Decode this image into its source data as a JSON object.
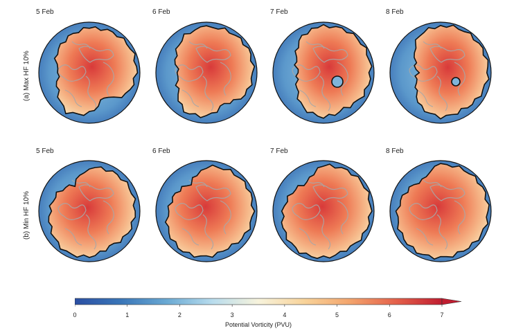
{
  "figure": {
    "dates": [
      "5 Feb",
      "6 Feb",
      "7 Feb",
      "8 Feb"
    ],
    "rows": [
      {
        "label": "(a) Max HF 10%"
      },
      {
        "label": "(b) Min HF 10%"
      }
    ],
    "colorbar": {
      "title": "Potential Vorticity (PVU)",
      "ticks": [
        "0",
        "1",
        "2",
        "3",
        "4",
        "5",
        "6",
        "7"
      ],
      "range": [
        0,
        7
      ],
      "colormap": [
        "#2b4fa3",
        "#3a76b8",
        "#6aa9d3",
        "#b8dced",
        "#f7f3dc",
        "#f8d39a",
        "#f3a46d",
        "#e4614b",
        "#c01d30"
      ],
      "extend": "max"
    },
    "colors": {
      "low_pv": "#4a84c2",
      "high_pv": "#e9664e",
      "contour": "#111111",
      "land_outline": "#a8a8a8"
    }
  }
}
